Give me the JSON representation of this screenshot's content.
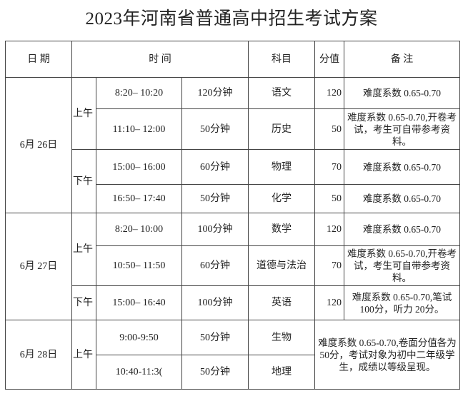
{
  "title": "2023年河南省普通高中招生考试方案",
  "headers": {
    "date": "日 期",
    "time": "时 间",
    "subject": "科目",
    "score": "分值",
    "remarks": "备 注"
  },
  "days": [
    {
      "date": "6月 26日",
      "rows": [
        {
          "period": "上午",
          "time": "8:20– 10:20",
          "duration": "120分钟",
          "subject": "语文",
          "score": "120",
          "remarks": "难度系数 0.65-0.70"
        },
        {
          "time": "11:10– 12:00",
          "duration": "50分钟",
          "subject": "历史",
          "score": "50",
          "remarks": "难度系数 0.65-0.70,开卷考试，考生可自带参考资料。"
        },
        {
          "period": "下午",
          "time": "15:00– 16:00",
          "duration": "60分钟",
          "subject": "物理",
          "score": "70",
          "remarks": "难度系数 0.65-0.70"
        },
        {
          "time": "16:50– 17:40",
          "duration": "50分钟",
          "subject": "化学",
          "score": "50",
          "remarks": "难度系数 0.65-0.70"
        }
      ]
    },
    {
      "date": "6月 27日",
      "rows": [
        {
          "period": "上午",
          "time": "8:20– 10:00",
          "duration": "100分钟",
          "subject": "数学",
          "score": "120",
          "remarks": "难度系数 0.65-0.70"
        },
        {
          "time": "10:50– 11:50",
          "duration": "60分钟",
          "subject": "道德与法治",
          "score": "70",
          "remarks": "难度系数 0.65-0.70,开卷考试，考生可自带参考资料。"
        },
        {
          "period": "下午",
          "time": "15:00– 16:40",
          "duration": "100分钟",
          "subject": "英语",
          "score": "120",
          "remarks": "难度系数 0.65-0.70,笔试 100分，听力 20分。"
        }
      ]
    },
    {
      "date": "6月 28日",
      "rows": [
        {
          "period": "上午",
          "time": "9:00-9:50",
          "duration": "50分钟",
          "subject": "生物"
        },
        {
          "time": "10:40-11:3(",
          "duration": "50分钟",
          "subject": "地理"
        }
      ],
      "merged_remarks": "难度系数 0.65-0.70,卷面分值各为 50分，考试对象为初中二年级学生，成绩以等级呈现。"
    }
  ]
}
